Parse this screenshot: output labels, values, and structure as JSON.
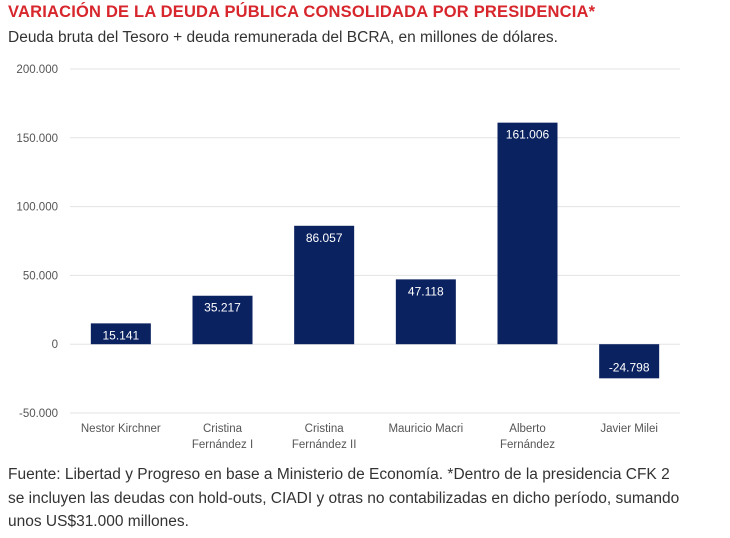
{
  "header": {
    "title": "VARIACIÓN DE LA DEUDA PÚBLICA CONSOLIDADA POR PRESIDENCIA*",
    "subtitle": "Deuda bruta del Tesoro + deuda remunerada del BCRA, en millones de dólares."
  },
  "colors": {
    "title": "#d7262c",
    "bar": "#0b2260",
    "grid": "#e3e3e3",
    "axis_text": "#555555"
  },
  "chart_data": {
    "type": "bar",
    "categories": [
      [
        "Nestor Kirchner"
      ],
      [
        "Cristina",
        "Fernández I"
      ],
      [
        "Cristina",
        "Fernández II"
      ],
      [
        "Mauricio Macri"
      ],
      [
        "Alberto",
        "Fernández"
      ],
      [
        "Javier Milei"
      ]
    ],
    "values": [
      15141,
      35217,
      86057,
      47118,
      161006,
      -24798
    ],
    "value_labels": [
      "15.141",
      "35.217",
      "86.057",
      "47.118",
      "161.006",
      "-24.798"
    ],
    "yticks": [
      200000,
      150000,
      100000,
      50000,
      0,
      -50000
    ],
    "ytick_labels": [
      "200.000",
      "150.000",
      "100.000",
      "50.000",
      "0",
      "-50.000"
    ],
    "ylim": [
      -50000,
      200000
    ],
    "grid": true,
    "legend": "none"
  },
  "footnote": {
    "lines": [
      "Fuente: Libertad y Progreso en base a Ministerio de Economía. *Dentro de la presidencia CFK 2",
      "se incluyen las deudas con hold-outs, CIADI y otras no contabilizadas en dicho período, sumando",
      "unos US$31.000 millones."
    ]
  }
}
